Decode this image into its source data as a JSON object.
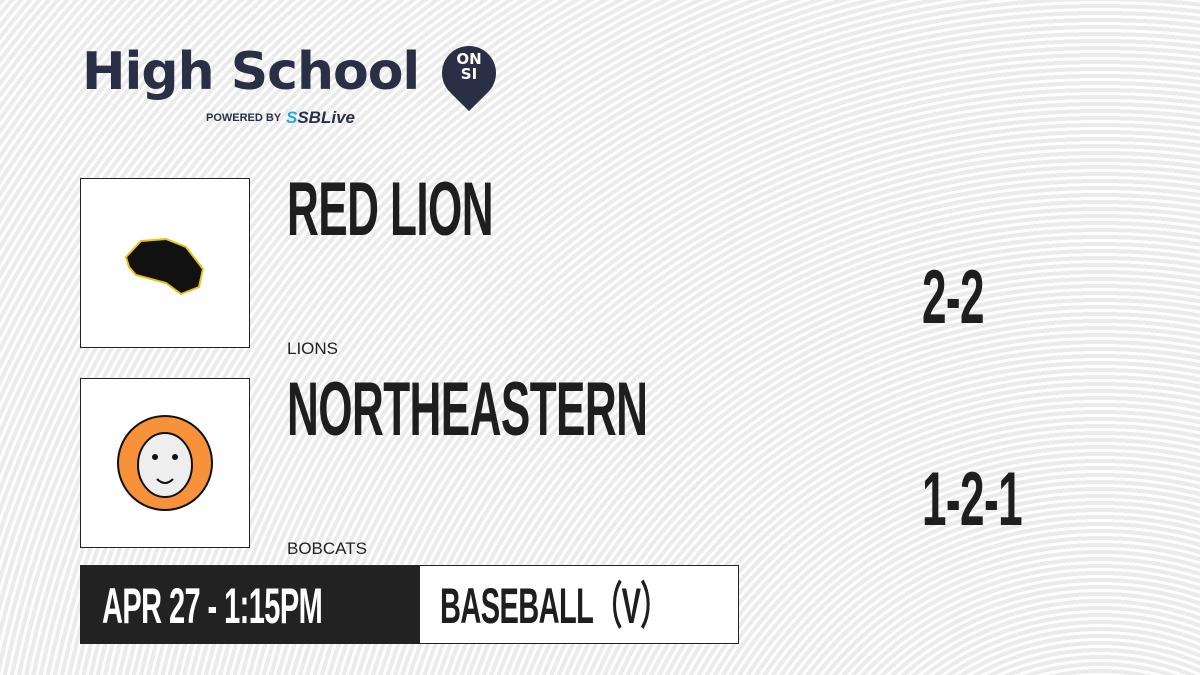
{
  "brand": {
    "title": "High School",
    "badge": "ON SI",
    "powered_by": "POWERED BY",
    "partner": "SBLive",
    "partner_mark": "S"
  },
  "teams": [
    {
      "name": "RED LION",
      "mascot": "LIONS",
      "record": "2-2",
      "logo_icon": "lion-head-icon",
      "logo_color": "#e8c21b"
    },
    {
      "name": "NORTHEASTERN",
      "mascot": "BOBCATS",
      "record": "1-2-1",
      "logo_icon": "bobcat-head-icon",
      "logo_color": "#f7923a"
    }
  ],
  "game": {
    "datetime": "APR 27 - 1:15PM",
    "sport": "BASEBALL（V）"
  }
}
